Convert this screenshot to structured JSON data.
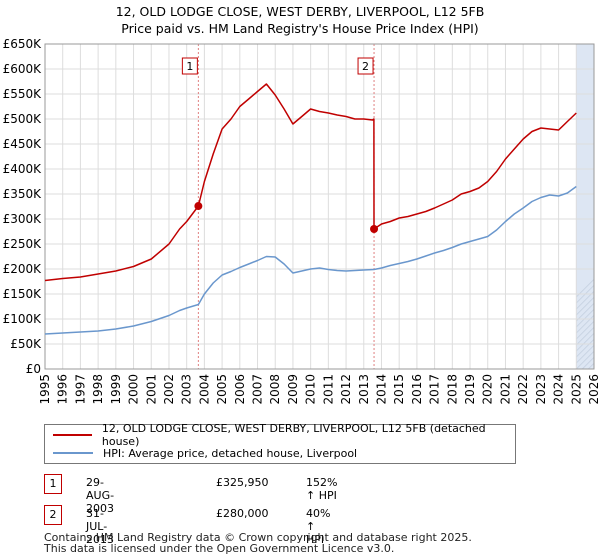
{
  "header": {
    "title_line1": "12, OLD LODGE CLOSE, WEST DERBY, LIVERPOOL, L12 5FB",
    "title_line2": "Price paid vs. HM Land Registry's House Price Index (HPI)"
  },
  "legend": {
    "property_label": "12, OLD LODGE CLOSE, WEST DERBY, LIVERPOOL, L12 5FB (detached house)",
    "hpi_label": "HPI: Average price, detached house, Liverpool"
  },
  "sales": [
    {
      "num": "1",
      "date": "29-AUG-2003",
      "price": "£325,950",
      "hpi": "152% ↑ HPI"
    },
    {
      "num": "2",
      "date": "31-JUL-2013",
      "price": "£280,000",
      "hpi": "40% ↑ HPI"
    }
  ],
  "footer": {
    "line1": "Contains HM Land Registry data © Crown copyright and database right 2025.",
    "line2": "This data is licensed under the Open Government Licence v3.0."
  },
  "colors": {
    "property": "#c00000",
    "hpi": "#6a97cd",
    "shade": "#dde6f3",
    "grid": "#dddddd"
  },
  "chart_data": {
    "type": "line",
    "title": "12, OLD LODGE CLOSE, WEST DERBY, LIVERPOOL, L12 5FB",
    "subtitle": "Price paid vs. HM Land Registry's House Price Index (HPI)",
    "xlim": [
      1995,
      2026
    ],
    "ylim": [
      0,
      650000
    ],
    "x_ticks": [
      1995,
      1996,
      1997,
      1998,
      1999,
      2000,
      2001,
      2002,
      2003,
      2004,
      2005,
      2006,
      2007,
      2008,
      2009,
      2010,
      2011,
      2012,
      2013,
      2014,
      2015,
      2016,
      2017,
      2018,
      2019,
      2020,
      2021,
      2022,
      2023,
      2024,
      2025,
      2026
    ],
    "y_ticks": [
      0,
      50000,
      100000,
      150000,
      200000,
      250000,
      300000,
      350000,
      400000,
      450000,
      500000,
      550000,
      600000,
      650000
    ],
    "y_tick_labels": [
      "£0",
      "£50K",
      "£100K",
      "£150K",
      "£200K",
      "£250K",
      "£300K",
      "£350K",
      "£400K",
      "£450K",
      "£500K",
      "£550K",
      "£600K",
      "£650K"
    ],
    "grid": true,
    "forecast_shade_from": 2025.0,
    "series": [
      {
        "name": "12, OLD LODGE CLOSE, WEST DERBY, LIVERPOOL, L12 5FB (detached house)",
        "x": [
          1995.0,
          1996.0,
          1997.0,
          1998.0,
          1999.0,
          2000.0,
          2001.0,
          2002.0,
          2002.6,
          2003.0,
          2003.66,
          2004.0,
          2004.5,
          2005.0,
          2005.5,
          2006.0,
          2006.5,
          2007.0,
          2007.5,
          2008.0,
          2008.5,
          2009.0,
          2009.5,
          2010.0,
          2010.5,
          2011.0,
          2011.5,
          2012.0,
          2012.5,
          2013.0,
          2013.5,
          2013.57,
          2013.58,
          2014.0,
          2014.5,
          2015.0,
          2015.5,
          2016.0,
          2016.5,
          2017.0,
          2017.5,
          2018.0,
          2018.5,
          2019.0,
          2019.5,
          2020.0,
          2020.5,
          2021.0,
          2021.5,
          2022.0,
          2022.5,
          2023.0,
          2023.5,
          2024.0,
          2024.5,
          2025.0
        ],
        "y": [
          177000,
          181000,
          184000,
          190000,
          196000,
          205000,
          220000,
          250000,
          280000,
          295000,
          325950,
          375000,
          430000,
          480000,
          500000,
          525000,
          540000,
          555000,
          570000,
          548000,
          520000,
          490000,
          505000,
          520000,
          515000,
          512000,
          508000,
          505000,
          500000,
          500000,
          498000,
          500000,
          280000,
          290000,
          295000,
          302000,
          305000,
          310000,
          315000,
          322000,
          330000,
          338000,
          350000,
          355000,
          362000,
          375000,
          395000,
          420000,
          440000,
          460000,
          475000,
          482000,
          480000,
          478000,
          495000,
          512000
        ]
      },
      {
        "name": "HPI: Average price, detached house, Liverpool",
        "x": [
          1995.0,
          1996.0,
          1997.0,
          1998.0,
          1999.0,
          2000.0,
          2001.0,
          2002.0,
          2002.6,
          2003.0,
          2003.66,
          2004.0,
          2004.5,
          2005.0,
          2005.5,
          2006.0,
          2006.5,
          2007.0,
          2007.5,
          2008.0,
          2008.5,
          2009.0,
          2009.5,
          2010.0,
          2010.5,
          2011.0,
          2011.5,
          2012.0,
          2012.5,
          2013.0,
          2013.58,
          2014.0,
          2014.5,
          2015.0,
          2015.5,
          2016.0,
          2016.5,
          2017.0,
          2017.5,
          2018.0,
          2018.5,
          2019.0,
          2019.5,
          2020.0,
          2020.5,
          2021.0,
          2021.5,
          2022.0,
          2022.5,
          2023.0,
          2023.5,
          2024.0,
          2024.5,
          2025.0
        ],
        "y": [
          70000,
          72000,
          74000,
          76000,
          80000,
          86000,
          95000,
          107000,
          117000,
          122000,
          129000,
          150000,
          172000,
          188000,
          195000,
          203000,
          210000,
          217000,
          225000,
          224000,
          210000,
          192000,
          196000,
          200000,
          202000,
          199000,
          197000,
          196000,
          197000,
          198000,
          199000,
          202000,
          207000,
          211000,
          215000,
          220000,
          226000,
          232000,
          237000,
          243000,
          250000,
          255000,
          260000,
          265000,
          278000,
          295000,
          310000,
          322000,
          335000,
          343000,
          348000,
          346000,
          352000,
          365000
        ]
      }
    ],
    "annotations": [
      {
        "label": "1",
        "x": 2003.66,
        "y": 325950
      },
      {
        "label": "2",
        "x": 2013.58,
        "y": 280000
      }
    ]
  }
}
